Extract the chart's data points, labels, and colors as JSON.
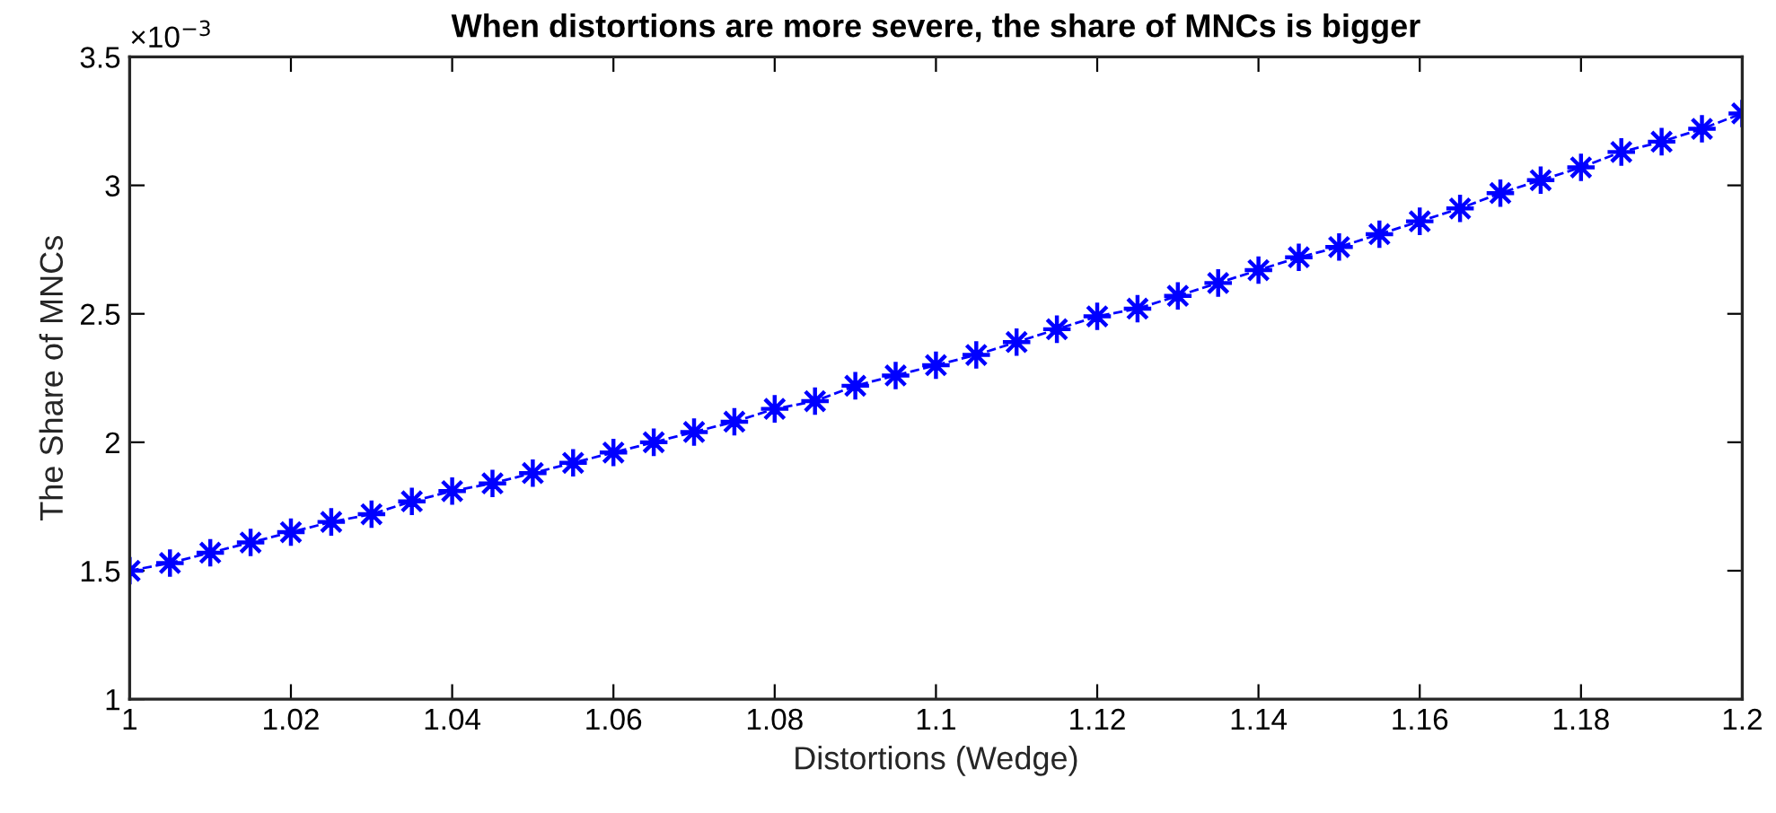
{
  "chart_data": {
    "type": "line",
    "title": "When distortions are more severe, the share of MNCs is bigger",
    "xlabel": "Distortions (Wedge)",
    "ylabel": "The Share of MNCs",
    "annotations": [
      "×10$^{−3}$"
    ],
    "x": [
      1.0,
      1.005,
      1.01,
      1.015,
      1.02,
      1.025,
      1.03,
      1.035,
      1.04,
      1.045,
      1.05,
      1.055,
      1.06,
      1.065,
      1.07,
      1.075,
      1.08,
      1.085,
      1.09,
      1.095,
      1.1,
      1.105,
      1.11,
      1.115,
      1.12,
      1.125,
      1.13,
      1.135,
      1.14,
      1.145,
      1.15,
      1.155,
      1.16,
      1.165,
      1.17,
      1.175,
      1.18,
      1.185,
      1.19,
      1.195,
      1.2
    ],
    "series": [
      {
        "color": "#0000ff",
        "values": [
          1.5,
          1.53,
          1.57,
          1.61,
          1.65,
          1.69,
          1.72,
          1.77,
          1.81,
          1.84,
          1.88,
          1.92,
          1.96,
          2.0,
          2.04,
          2.08,
          2.13,
          2.16,
          2.22,
          2.26,
          2.3,
          2.34,
          2.39,
          2.44,
          2.49,
          2.52,
          2.57,
          2.62,
          2.67,
          2.72,
          2.76,
          2.81,
          2.86,
          2.91,
          2.97,
          3.02,
          3.07,
          3.13,
          3.17,
          3.22,
          3.28
        ]
      }
    ],
    "xlim": [
      1,
      1.2
    ],
    "xticks": [
      1,
      1.02,
      1.04,
      1.06,
      1.08,
      1.1,
      1.12,
      1.14,
      1.16,
      1.18,
      1.2
    ],
    "ylim": [
      1,
      3.5
    ],
    "yticks": [
      1,
      1.5,
      2,
      2.5,
      3,
      3.5
    ],
    "grid": false,
    "legend": false,
    "marker": "star",
    "line_style": "dashed"
  }
}
